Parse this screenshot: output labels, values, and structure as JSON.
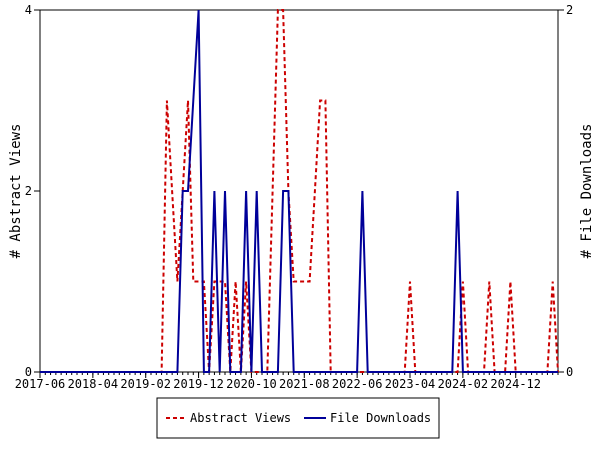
{
  "chart_data": {
    "type": "line",
    "title": "",
    "x_tick_labels": [
      "2017-06",
      "2018-04",
      "2019-02",
      "2019-12",
      "2020-10",
      "2021-08",
      "2022-06",
      "2023-04",
      "2024-02",
      "2024-12"
    ],
    "x_range": [
      "2017-06",
      "2025-08"
    ],
    "ylabel_left": "# Abstract Views",
    "ylabel_right": "# File Downloads",
    "ylim_left": [
      0,
      4
    ],
    "ylim_right": [
      0,
      2
    ],
    "yticks_left": [
      "0",
      "2",
      "4"
    ],
    "yticks_right": [
      "0",
      "2"
    ],
    "grid": false,
    "legend_position": "bottom-center",
    "series": [
      {
        "name": "Abstract Views",
        "axis": "left",
        "color": "#cc0000",
        "style": "dashed",
        "points": [
          [
            "2017-06",
            0
          ],
          [
            "2019-05",
            0
          ],
          [
            "2019-06",
            3
          ],
          [
            "2019-07",
            2
          ],
          [
            "2019-08",
            1
          ],
          [
            "2019-09",
            2
          ],
          [
            "2019-10",
            3
          ],
          [
            "2019-11",
            1
          ],
          [
            "2019-12",
            1
          ],
          [
            "2020-01",
            1
          ],
          [
            "2020-02",
            0
          ],
          [
            "2020-03",
            1
          ],
          [
            "2020-04",
            1
          ],
          [
            "2020-05",
            1
          ],
          [
            "2020-06",
            0
          ],
          [
            "2020-07",
            1
          ],
          [
            "2020-08",
            0
          ],
          [
            "2020-09",
            1
          ],
          [
            "2020-10",
            0
          ],
          [
            "2020-11",
            0
          ],
          [
            "2020-12",
            0
          ],
          [
            "2021-01",
            0
          ],
          [
            "2021-02",
            2
          ],
          [
            "2021-03",
            4
          ],
          [
            "2021-04",
            4
          ],
          [
            "2021-05",
            2
          ],
          [
            "2021-06",
            1
          ],
          [
            "2021-07",
            1
          ],
          [
            "2021-08",
            1
          ],
          [
            "2021-09",
            1
          ],
          [
            "2021-10",
            2
          ],
          [
            "2021-11",
            3
          ],
          [
            "2021-12",
            3
          ],
          [
            "2022-01",
            0
          ],
          [
            "2023-03",
            0
          ],
          [
            "2023-04",
            1
          ],
          [
            "2023-05",
            0
          ],
          [
            "2024-01",
            0
          ],
          [
            "2024-02",
            1
          ],
          [
            "2024-03",
            0
          ],
          [
            "2024-06",
            0
          ],
          [
            "2024-07",
            1
          ],
          [
            "2024-08",
            0
          ],
          [
            "2024-10",
            0
          ],
          [
            "2024-11",
            1
          ],
          [
            "2024-12",
            0
          ],
          [
            "2025-06",
            0
          ],
          [
            "2025-07",
            1
          ],
          [
            "2025-08",
            0
          ]
        ]
      },
      {
        "name": "File Downloads",
        "axis": "right",
        "color": "#000099",
        "style": "solid",
        "points": [
          [
            "2017-06",
            0
          ],
          [
            "2019-08",
            0
          ],
          [
            "2019-09",
            1
          ],
          [
            "2019-10",
            1
          ],
          [
            "2019-11",
            1.5
          ],
          [
            "2019-12",
            2
          ],
          [
            "2020-01",
            0
          ],
          [
            "2020-02",
            0
          ],
          [
            "2020-03",
            1
          ],
          [
            "2020-04",
            0
          ],
          [
            "2020-05",
            1
          ],
          [
            "2020-06",
            0
          ],
          [
            "2020-07",
            0
          ],
          [
            "2020-08",
            0
          ],
          [
            "2020-09",
            1
          ],
          [
            "2020-10",
            0
          ],
          [
            "2020-11",
            1
          ],
          [
            "2020-12",
            0
          ],
          [
            "2021-03",
            0
          ],
          [
            "2021-04",
            1
          ],
          [
            "2021-05",
            1
          ],
          [
            "2021-06",
            0
          ],
          [
            "2022-06",
            0
          ],
          [
            "2022-07",
            1
          ],
          [
            "2022-08",
            0
          ],
          [
            "2023-12",
            0
          ],
          [
            "2024-01",
            1
          ],
          [
            "2024-02",
            0
          ],
          [
            "2025-08",
            0
          ]
        ]
      }
    ]
  }
}
